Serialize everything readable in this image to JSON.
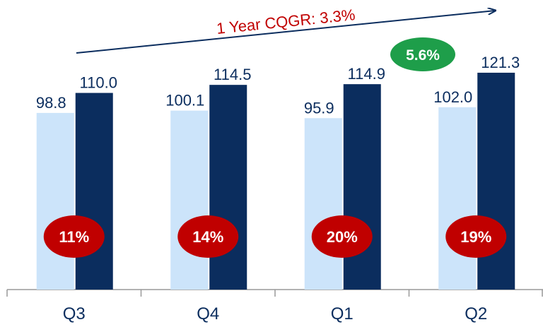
{
  "chart_data": {
    "type": "bar",
    "categories": [
      "Q3",
      "Q4",
      "Q1",
      "Q2"
    ],
    "series": [
      {
        "color": "#cce4fa",
        "values": [
          98.8,
          100.1,
          95.9,
          102.0
        ],
        "value_labels": [
          "98.8",
          "100.1",
          "95.9",
          "102.0"
        ]
      },
      {
        "color": "#0b2d5e",
        "values": [
          110.0,
          114.5,
          114.9,
          121.3
        ],
        "value_labels": [
          "110.0",
          "114.5",
          "114.9",
          "121.3"
        ]
      }
    ],
    "ylim": [
      0,
      160
    ],
    "annotations": {
      "trend": "1 Year CQGR: 3.3%",
      "growth": "5.6%",
      "badges": [
        "11%",
        "14%",
        "20%",
        "19%"
      ]
    }
  }
}
